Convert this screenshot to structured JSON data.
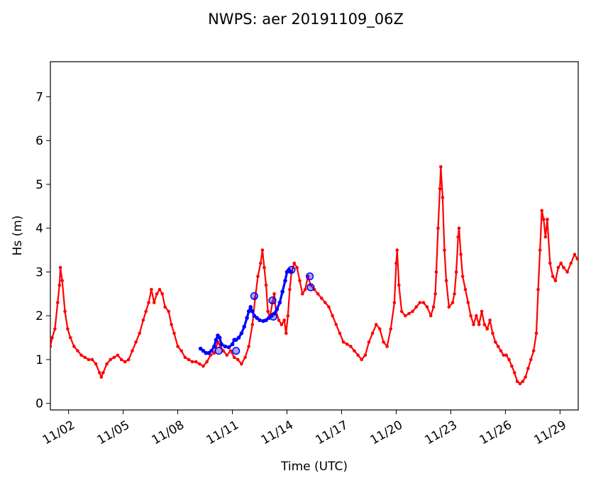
{
  "chart_data": {
    "type": "line",
    "title": "NWPS: aer 20191109_06Z",
    "xlabel": "Time (UTC)",
    "ylabel": "Hs (m)",
    "x_unit": "day of November 2019",
    "xlim": [
      1.0,
      30.0
    ],
    "ylim": [
      -0.15,
      7.8
    ],
    "x_ticks": [
      {
        "x": 2,
        "label": "11/02"
      },
      {
        "x": 5,
        "label": "11/05"
      },
      {
        "x": 8,
        "label": "11/08"
      },
      {
        "x": 11,
        "label": "11/11"
      },
      {
        "x": 14,
        "label": "11/14"
      },
      {
        "x": 17,
        "label": "11/17"
      },
      {
        "x": 20,
        "label": "11/20"
      },
      {
        "x": 23,
        "label": "11/23"
      },
      {
        "x": 26,
        "label": "11/26"
      },
      {
        "x": 29,
        "label": "11/29"
      }
    ],
    "y_ticks": [
      0,
      1,
      2,
      3,
      4,
      5,
      6,
      7
    ],
    "grid": false,
    "colors": {
      "observed": "#ff0000",
      "forecast": "#0000ff",
      "axis": "#000000"
    },
    "series": [
      {
        "role": "observed",
        "points": [
          [
            1.0,
            1.3
          ],
          [
            1.1,
            1.5
          ],
          [
            1.25,
            1.7
          ],
          [
            1.4,
            2.3
          ],
          [
            1.5,
            2.7
          ],
          [
            1.55,
            3.1
          ],
          [
            1.65,
            2.8
          ],
          [
            1.8,
            2.1
          ],
          [
            1.95,
            1.7
          ],
          [
            2.1,
            1.5
          ],
          [
            2.3,
            1.3
          ],
          [
            2.5,
            1.2
          ],
          [
            2.7,
            1.1
          ],
          [
            2.9,
            1.05
          ],
          [
            3.1,
            1.0
          ],
          [
            3.3,
            1.0
          ],
          [
            3.5,
            0.9
          ],
          [
            3.7,
            0.7
          ],
          [
            3.8,
            0.6
          ],
          [
            3.9,
            0.7
          ],
          [
            4.1,
            0.9
          ],
          [
            4.3,
            1.0
          ],
          [
            4.5,
            1.05
          ],
          [
            4.7,
            1.1
          ],
          [
            4.9,
            1.0
          ],
          [
            5.1,
            0.95
          ],
          [
            5.3,
            1.0
          ],
          [
            5.5,
            1.2
          ],
          [
            5.7,
            1.4
          ],
          [
            5.9,
            1.6
          ],
          [
            6.1,
            1.9
          ],
          [
            6.25,
            2.1
          ],
          [
            6.4,
            2.3
          ],
          [
            6.55,
            2.6
          ],
          [
            6.7,
            2.3
          ],
          [
            6.85,
            2.5
          ],
          [
            7.0,
            2.6
          ],
          [
            7.15,
            2.5
          ],
          [
            7.3,
            2.2
          ],
          [
            7.5,
            2.1
          ],
          [
            7.65,
            1.8
          ],
          [
            7.8,
            1.6
          ],
          [
            8.0,
            1.3
          ],
          [
            8.2,
            1.2
          ],
          [
            8.4,
            1.05
          ],
          [
            8.6,
            1.0
          ],
          [
            8.8,
            0.95
          ],
          [
            9.0,
            0.95
          ],
          [
            9.2,
            0.9
          ],
          [
            9.4,
            0.85
          ],
          [
            9.6,
            0.95
          ],
          [
            9.8,
            1.1
          ],
          [
            10.0,
            1.15
          ],
          [
            10.2,
            1.4
          ],
          [
            10.35,
            1.3
          ],
          [
            10.5,
            1.2
          ],
          [
            10.7,
            1.1
          ],
          [
            10.9,
            1.2
          ],
          [
            11.1,
            1.05
          ],
          [
            11.3,
            1.0
          ],
          [
            11.5,
            0.9
          ],
          [
            11.7,
            1.05
          ],
          [
            11.9,
            1.3
          ],
          [
            12.1,
            1.8
          ],
          [
            12.25,
            2.4
          ],
          [
            12.4,
            2.9
          ],
          [
            12.55,
            3.2
          ],
          [
            12.65,
            3.5
          ],
          [
            12.75,
            3.1
          ],
          [
            12.85,
            2.7
          ],
          [
            12.95,
            2.1
          ],
          [
            13.05,
            1.95
          ],
          [
            13.2,
            2.3
          ],
          [
            13.3,
            2.5
          ],
          [
            13.4,
            2.1
          ],
          [
            13.55,
            1.9
          ],
          [
            13.7,
            1.8
          ],
          [
            13.85,
            1.9
          ],
          [
            13.95,
            1.6
          ],
          [
            14.05,
            2.0
          ],
          [
            14.15,
            2.6
          ],
          [
            14.25,
            3.0
          ],
          [
            14.4,
            3.2
          ],
          [
            14.55,
            3.1
          ],
          [
            14.7,
            2.8
          ],
          [
            14.85,
            2.5
          ],
          [
            15.0,
            2.6
          ],
          [
            15.15,
            2.9
          ],
          [
            15.3,
            2.7
          ],
          [
            15.5,
            2.6
          ],
          [
            15.7,
            2.5
          ],
          [
            15.9,
            2.4
          ],
          [
            16.1,
            2.3
          ],
          [
            16.3,
            2.2
          ],
          [
            16.5,
            2.0
          ],
          [
            16.7,
            1.8
          ],
          [
            16.9,
            1.6
          ],
          [
            17.1,
            1.4
          ],
          [
            17.3,
            1.35
          ],
          [
            17.5,
            1.3
          ],
          [
            17.7,
            1.2
          ],
          [
            17.9,
            1.1
          ],
          [
            18.1,
            1.0
          ],
          [
            18.3,
            1.1
          ],
          [
            18.5,
            1.4
          ],
          [
            18.7,
            1.6
          ],
          [
            18.9,
            1.8
          ],
          [
            19.1,
            1.7
          ],
          [
            19.3,
            1.4
          ],
          [
            19.5,
            1.3
          ],
          [
            19.7,
            1.7
          ],
          [
            19.9,
            2.3
          ],
          [
            20.0,
            3.2
          ],
          [
            20.05,
            3.5
          ],
          [
            20.15,
            2.7
          ],
          [
            20.3,
            2.1
          ],
          [
            20.5,
            2.0
          ],
          [
            20.7,
            2.05
          ],
          [
            20.9,
            2.1
          ],
          [
            21.1,
            2.2
          ],
          [
            21.3,
            2.3
          ],
          [
            21.5,
            2.3
          ],
          [
            21.7,
            2.2
          ],
          [
            21.9,
            2.0
          ],
          [
            22.05,
            2.2
          ],
          [
            22.15,
            2.5
          ],
          [
            22.2,
            3.0
          ],
          [
            22.3,
            4.0
          ],
          [
            22.4,
            4.9
          ],
          [
            22.45,
            5.4
          ],
          [
            22.55,
            4.7
          ],
          [
            22.65,
            3.5
          ],
          [
            22.75,
            2.8
          ],
          [
            22.9,
            2.2
          ],
          [
            23.1,
            2.3
          ],
          [
            23.2,
            2.5
          ],
          [
            23.3,
            3.0
          ],
          [
            23.4,
            3.8
          ],
          [
            23.45,
            4.0
          ],
          [
            23.55,
            3.4
          ],
          [
            23.65,
            2.9
          ],
          [
            23.8,
            2.6
          ],
          [
            23.95,
            2.3
          ],
          [
            24.1,
            2.0
          ],
          [
            24.25,
            1.8
          ],
          [
            24.4,
            2.0
          ],
          [
            24.55,
            1.8
          ],
          [
            24.7,
            2.1
          ],
          [
            24.85,
            1.8
          ],
          [
            25.0,
            1.7
          ],
          [
            25.15,
            1.9
          ],
          [
            25.3,
            1.6
          ],
          [
            25.45,
            1.4
          ],
          [
            25.6,
            1.3
          ],
          [
            25.75,
            1.2
          ],
          [
            25.9,
            1.1
          ],
          [
            26.05,
            1.1
          ],
          [
            26.2,
            1.0
          ],
          [
            26.35,
            0.85
          ],
          [
            26.5,
            0.7
          ],
          [
            26.65,
            0.5
          ],
          [
            26.8,
            0.45
          ],
          [
            26.95,
            0.5
          ],
          [
            27.1,
            0.6
          ],
          [
            27.25,
            0.8
          ],
          [
            27.4,
            1.0
          ],
          [
            27.55,
            1.2
          ],
          [
            27.7,
            1.6
          ],
          [
            27.8,
            2.6
          ],
          [
            27.9,
            3.5
          ],
          [
            28.0,
            4.4
          ],
          [
            28.1,
            4.2
          ],
          [
            28.2,
            3.8
          ],
          [
            28.3,
            4.2
          ],
          [
            28.45,
            3.2
          ],
          [
            28.6,
            2.9
          ],
          [
            28.75,
            2.8
          ],
          [
            28.9,
            3.1
          ],
          [
            29.05,
            3.2
          ],
          [
            29.2,
            3.1
          ],
          [
            29.4,
            3.0
          ],
          [
            29.6,
            3.2
          ],
          [
            29.8,
            3.4
          ],
          [
            29.95,
            3.3
          ]
        ]
      },
      {
        "role": "forecast",
        "points": [
          [
            9.25,
            1.25
          ],
          [
            9.4,
            1.2
          ],
          [
            9.55,
            1.15
          ],
          [
            9.7,
            1.15
          ],
          [
            9.85,
            1.2
          ],
          [
            10.0,
            1.3
          ],
          [
            10.1,
            1.45
          ],
          [
            10.2,
            1.55
          ],
          [
            10.3,
            1.5
          ],
          [
            10.4,
            1.35
          ],
          [
            10.6,
            1.3
          ],
          [
            10.8,
            1.28
          ],
          [
            11.0,
            1.35
          ],
          [
            11.1,
            1.45
          ],
          [
            11.2,
            1.45
          ],
          [
            11.35,
            1.5
          ],
          [
            11.5,
            1.6
          ],
          [
            11.65,
            1.75
          ],
          [
            11.8,
            1.95
          ],
          [
            11.9,
            2.1
          ],
          [
            12.0,
            2.2
          ],
          [
            12.1,
            2.1
          ],
          [
            12.2,
            2.0
          ],
          [
            12.35,
            1.95
          ],
          [
            12.5,
            1.9
          ],
          [
            12.7,
            1.88
          ],
          [
            12.85,
            1.9
          ],
          [
            13.0,
            1.95
          ],
          [
            13.15,
            2.0
          ],
          [
            13.3,
            2.05
          ],
          [
            13.45,
            2.15
          ],
          [
            13.6,
            2.3
          ],
          [
            13.75,
            2.55
          ],
          [
            13.9,
            2.8
          ],
          [
            14.0,
            3.0
          ],
          [
            14.1,
            3.05
          ],
          [
            14.2,
            3.0
          ]
        ]
      },
      {
        "role": "forecast-markers",
        "points": [
          [
            10.25,
            1.2
          ],
          [
            11.2,
            1.2
          ],
          [
            12.2,
            2.45
          ],
          [
            13.2,
            2.35
          ],
          [
            13.25,
            1.98
          ],
          [
            14.25,
            3.05
          ],
          [
            15.25,
            2.9
          ],
          [
            15.3,
            2.65
          ]
        ]
      }
    ]
  }
}
